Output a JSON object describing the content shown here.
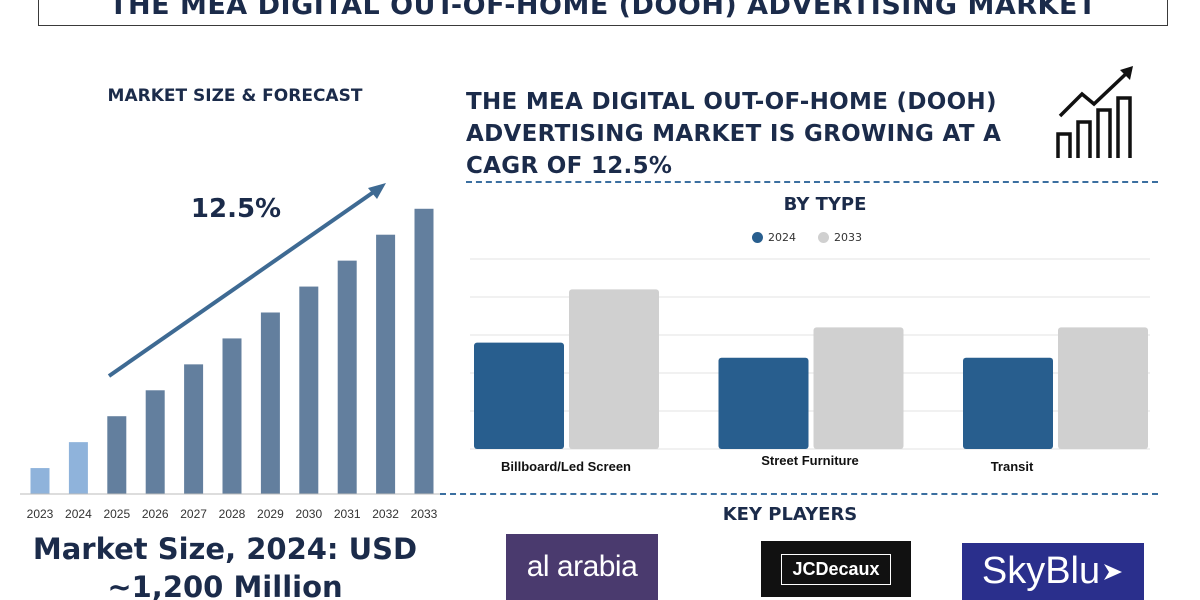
{
  "banner_title": "THE MEA DIGITAL OUT-OF-HOME (DOOH) ADVERTISING MARKET",
  "left_panel": {
    "title": "MARKET SIZE & FORECAST",
    "cagr_label": "12.5%",
    "market_size_text": "Market Size, 2024: USD ~1,200 Million"
  },
  "headline": "THE MEA DIGITAL OUT-OF-HOME (DOOH) ADVERTISING MARKET IS GROWING AT A CAGR OF 12.5%",
  "by_type_title": "BY TYPE",
  "key_players_title": "KEY PLAYERS",
  "key_players": [
    "al arabia",
    "JCDecaux",
    "SkyBlu"
  ],
  "colors": {
    "forecast_bar": "#637f9e",
    "early_bar": "#8fb3db",
    "series_2024": "#285e8e",
    "series_2033": "#d0d0d0",
    "heading": "#1b2b4a"
  },
  "chart_data": [
    {
      "type": "bar",
      "title": "MARKET SIZE & FORECAST",
      "categories": [
        "2023",
        "2024",
        "2025",
        "2026",
        "2027",
        "2028",
        "2029",
        "2030",
        "2031",
        "2032",
        "2033"
      ],
      "values": [
        1.0,
        2.0,
        3.0,
        4.0,
        5.0,
        6.0,
        7.0,
        8.0,
        9.0,
        10.0,
        11.0
      ],
      "ylim": [
        0,
        11.3
      ],
      "annotation": "12.5%",
      "grid": false
    },
    {
      "type": "bar",
      "title": "BY TYPE",
      "categories": [
        "Billboard/Led Screen",
        "Street Furniture",
        "Transit"
      ],
      "series": [
        {
          "name": "2024",
          "values": [
            2.8,
            2.4,
            2.4
          ]
        },
        {
          "name": "2033",
          "values": [
            4.2,
            3.2,
            3.2
          ]
        }
      ],
      "ylim": [
        0,
        5
      ],
      "grid": true,
      "legend": "top-center"
    }
  ]
}
